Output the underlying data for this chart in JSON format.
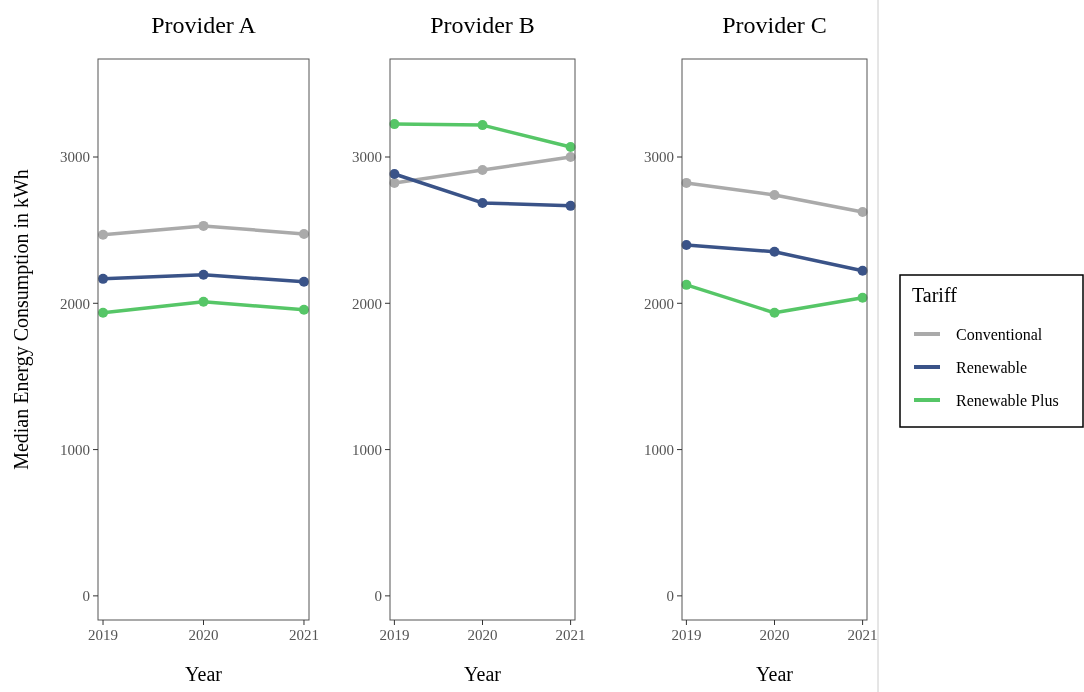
{
  "chart_data": [
    {
      "type": "line",
      "title": "Provider A",
      "xlabel": "Year",
      "ylabel": "Median Energy Consumption in kWh",
      "categories": [
        "2019",
        "2020",
        "2021"
      ],
      "ylim": [
        -165,
        3670
      ],
      "yticks": [
        0,
        1000,
        2000,
        3000
      ],
      "marker": "circle",
      "grid": false,
      "series": [
        {
          "color": "#aaaaaa",
          "values": [
            2468,
            2529,
            2474
          ]
        },
        {
          "color": "#3a5388",
          "values": [
            2167,
            2195,
            2147
          ]
        },
        {
          "color": "#56c667",
          "values": [
            1935,
            2010,
            1956
          ]
        }
      ]
    },
    {
      "type": "line",
      "title": "Provider B",
      "xlabel": "Year",
      "categories": [
        "2019",
        "2020",
        "2021"
      ],
      "ylim": [
        -165,
        3670
      ],
      "yticks": [
        0,
        1000,
        2000,
        3000
      ],
      "marker": "circle",
      "grid": false,
      "series": [
        {
          "color": "#aaaaaa",
          "values": [
            2823,
            2911,
            3000
          ]
        },
        {
          "color": "#3a5388",
          "values": [
            2884,
            2686,
            2666
          ]
        },
        {
          "color": "#56c667",
          "values": [
            3225,
            3218,
            3068
          ]
        }
      ]
    },
    {
      "type": "line",
      "title": "Provider C",
      "xlabel": "Year",
      "categories": [
        "2019",
        "2020",
        "2021"
      ],
      "ylim": [
        -165,
        3670
      ],
      "yticks": [
        0,
        1000,
        2000,
        3000
      ],
      "marker": "circle",
      "grid": false,
      "legend": "right",
      "legend_title": "Tariff",
      "series": [
        {
          "name": "Conventional",
          "color": "#aaaaaa",
          "values": [
            2823,
            2740,
            2624
          ]
        },
        {
          "name": "Renewable",
          "color": "#3a5388",
          "values": [
            2399,
            2352,
            2222
          ]
        },
        {
          "name": "Renewable Plus",
          "color": "#56c667",
          "values": [
            2126,
            1935,
            2038
          ]
        }
      ]
    }
  ]
}
